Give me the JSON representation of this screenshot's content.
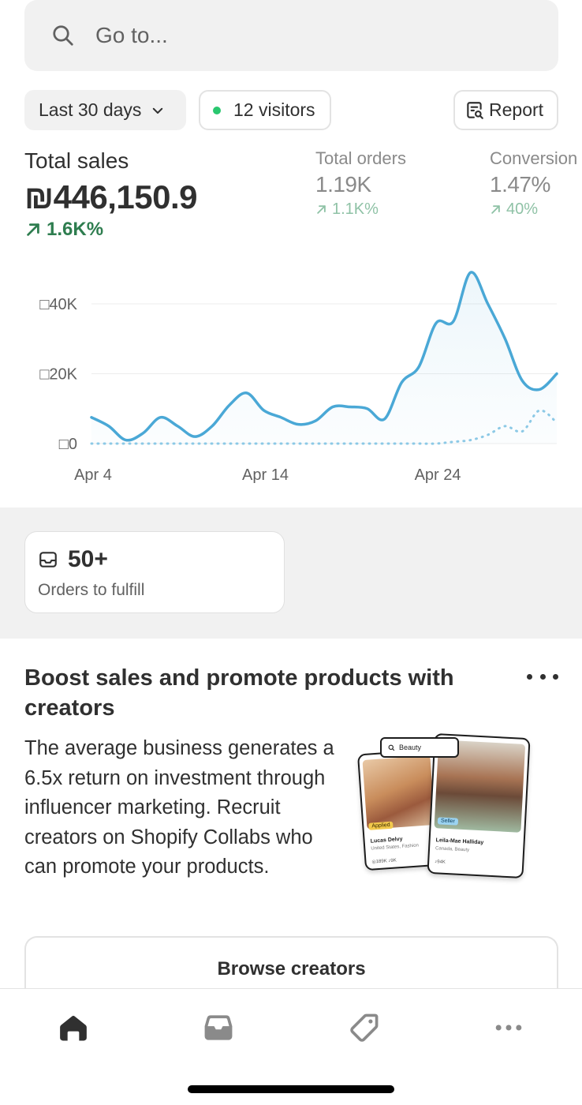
{
  "search": {
    "placeholder": "Go to..."
  },
  "filters": {
    "date_range": "Last 30 days",
    "visitors": "12 visitors",
    "report": "Report"
  },
  "metrics": {
    "total_sales": {
      "label": "Total sales",
      "value": "₪446,150.9",
      "delta": "1.6K%"
    },
    "total_orders": {
      "label": "Total orders",
      "value": "1.19K",
      "delta": "1.1K%"
    },
    "conversion": {
      "label": "Conversion",
      "value": "1.47%",
      "delta": "40%"
    }
  },
  "chart_data": {
    "type": "line",
    "y_tick_labels": [
      "□40K",
      "□20K",
      "□0"
    ],
    "x_tick_labels": [
      "Apr 4",
      "Apr 14",
      "Apr 24"
    ],
    "ylim": [
      0,
      40000
    ],
    "grid": true,
    "series": [
      {
        "style": "solid",
        "color": "#4aa8d6",
        "values": [
          7500,
          5000,
          1000,
          3000,
          7500,
          5000,
          2000,
          5000,
          11000,
          14500,
          9500,
          7500,
          5500,
          6500,
          10500,
          10500,
          10000,
          7000,
          17500,
          22000,
          34500,
          35000,
          49000,
          40000,
          30000,
          18000,
          15500,
          20000
        ]
      },
      {
        "style": "dotted",
        "color": "#8cc9e6",
        "values": [
          0,
          0,
          0,
          0,
          0,
          0,
          0,
          0,
          0,
          0,
          0,
          0,
          0,
          0,
          0,
          0,
          0,
          0,
          0,
          0,
          0,
          500,
          1000,
          2500,
          5000,
          3500,
          9500,
          6000
        ]
      }
    ]
  },
  "fulfill": {
    "count": "50+",
    "label": "Orders to fulfill"
  },
  "promo": {
    "title": "Boost sales and promote products with creators",
    "body": "The average business generates a 6.5x return on investment through influencer marketing. Recruit creators on Shopify Collabs who can promote your products.",
    "image": {
      "search_text": "Beauty",
      "card1": {
        "tag": "Applied",
        "name": "Lucas Delvy",
        "sub": "United States, Fashion",
        "stats": "◎189K  ♪9K"
      },
      "card2": {
        "tag": "Seller",
        "name": "Leila-Mae Halliday",
        "sub": "Canada, Beauty",
        "stats": "♪94K"
      }
    },
    "button": "Browse creators"
  },
  "tabs": [
    "home-icon",
    "orders-icon",
    "products-icon",
    "more-icon"
  ]
}
